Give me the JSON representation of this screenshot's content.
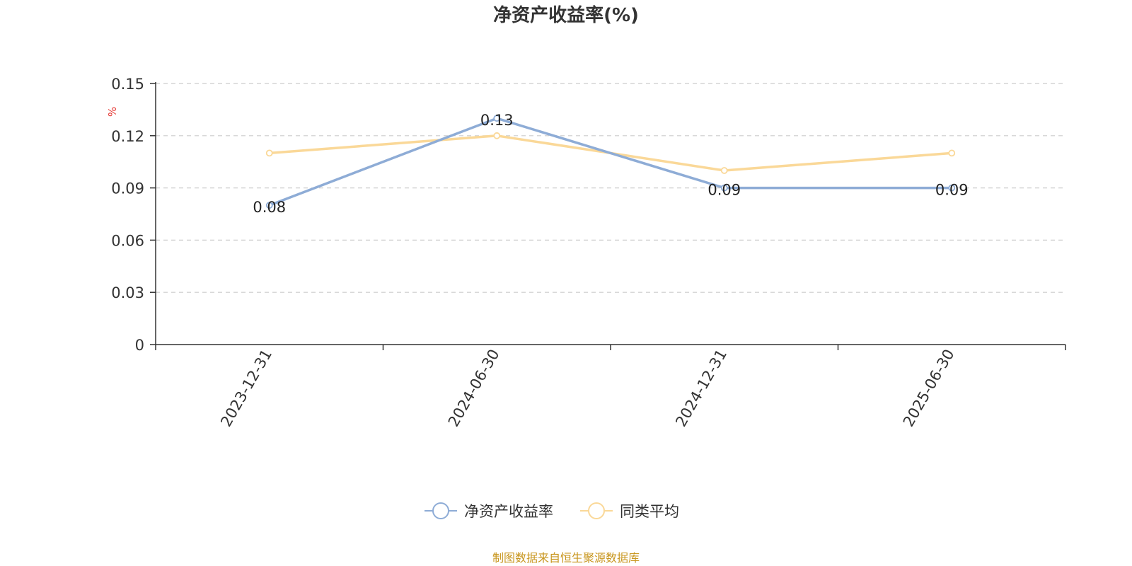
{
  "title": "净资产收益率(%)",
  "source_note": "制图数据来自恒生聚源数据库",
  "colors": {
    "series_main": "#8eacd6",
    "series_avg": "#fad898",
    "axis": "#333333",
    "grid": "#cccccc",
    "text": "#333333",
    "unit": "#e53935",
    "source": "#c8961e"
  },
  "chart_data": {
    "type": "line",
    "title": "净资产收益率(%)",
    "ylabel": "%",
    "xlabel": "",
    "categories": [
      "2023-12-31",
      "2024-06-30",
      "2024-12-31",
      "2025-06-30"
    ],
    "ylim": [
      0,
      0.15
    ],
    "yticks": [
      "0",
      "0.03",
      "0.06",
      "0.09",
      "0.12",
      "0.15"
    ],
    "grid": true,
    "legend_position": "bottom-center",
    "series": [
      {
        "name": "净资产收益率",
        "values": [
          0.08,
          0.13,
          0.09,
          0.09
        ],
        "data_labels": [
          "0.08",
          "0.13",
          "0.09",
          "0.09"
        ]
      },
      {
        "name": "同类平均",
        "values": [
          0.11,
          0.12,
          0.1,
          0.11
        ]
      }
    ]
  }
}
